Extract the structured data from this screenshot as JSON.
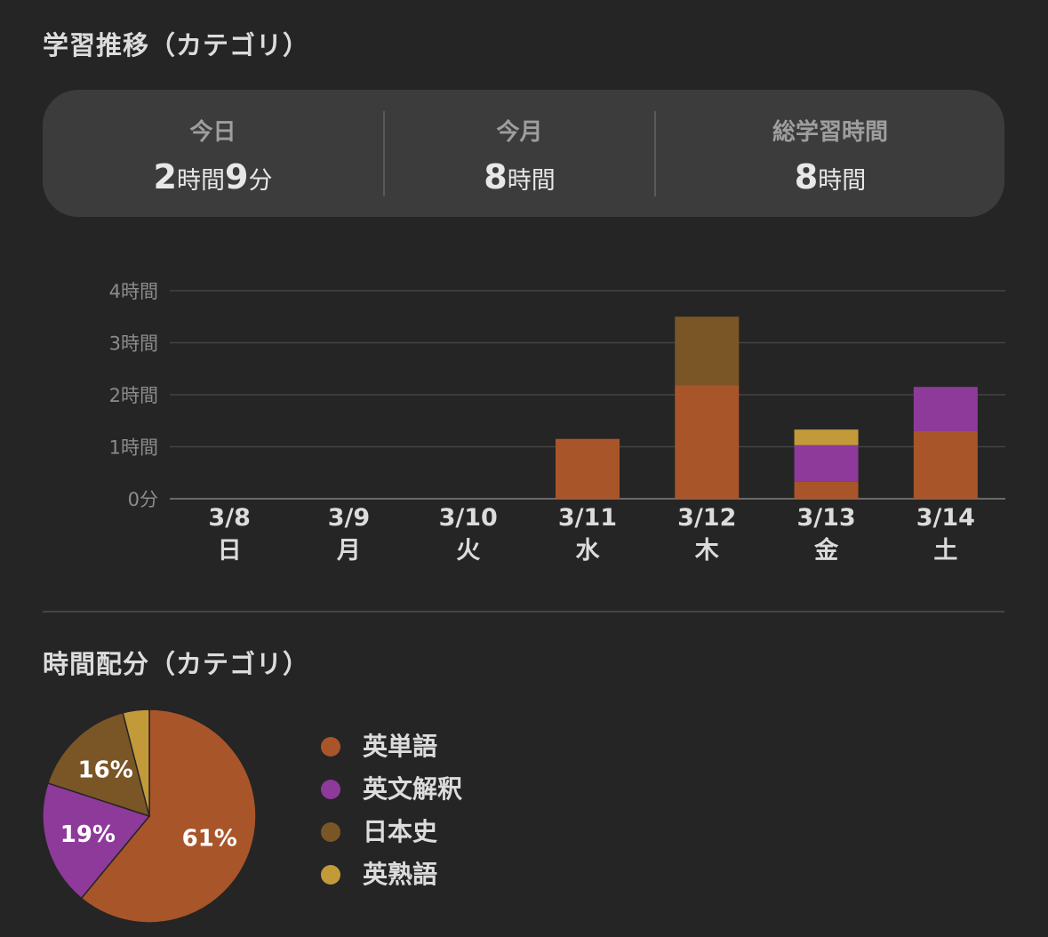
{
  "sections": {
    "trend_title": "学習推移（カテゴリ）",
    "distribution_title": "時間配分（カテゴリ）"
  },
  "summary": [
    {
      "label": "今日",
      "value_parts": [
        {
          "text": "2",
          "type": "num"
        },
        {
          "text": "時間",
          "type": "unit"
        },
        {
          "text": "9",
          "type": "num"
        },
        {
          "text": "分",
          "type": "unit"
        }
      ]
    },
    {
      "label": "今月",
      "value_parts": [
        {
          "text": "8",
          "type": "num"
        },
        {
          "text": "時間",
          "type": "unit"
        }
      ]
    },
    {
      "label": "総学習時間",
      "value_parts": [
        {
          "text": "8",
          "type": "num"
        },
        {
          "text": "時間",
          "type": "unit"
        }
      ]
    }
  ],
  "categories": [
    {
      "name": "英単語",
      "color": "#a9552a"
    },
    {
      "name": "英文解釈",
      "color": "#8e3a9a"
    },
    {
      "name": "日本史",
      "color": "#7a5627"
    },
    {
      "name": "英熟語",
      "color": "#c39a3a"
    }
  ],
  "chart_data": [
    {
      "type": "bar",
      "stacked": true,
      "categories": [
        "3/8",
        "3/9",
        "3/10",
        "3/11",
        "3/12",
        "3/13",
        "3/14"
      ],
      "weekdays": [
        "日",
        "月",
        "火",
        "水",
        "木",
        "金",
        "土"
      ],
      "ylim": [
        0,
        4
      ],
      "ytick_labels": [
        "0分",
        "1時間",
        "2時間",
        "3時間",
        "4時間"
      ],
      "grid": true,
      "series": [
        {
          "name": "英単語",
          "values": [
            0,
            0,
            0,
            1.15,
            2.18,
            0.33,
            1.3
          ]
        },
        {
          "name": "英文解釈",
          "values": [
            0,
            0,
            0,
            0,
            0,
            0.7,
            0.85
          ]
        },
        {
          "name": "日本史",
          "values": [
            0,
            0,
            0,
            0,
            1.32,
            0,
            0
          ]
        },
        {
          "name": "英熟語",
          "values": [
            0,
            0,
            0,
            0,
            0,
            0.3,
            0
          ]
        }
      ]
    },
    {
      "type": "pie",
      "labels": [
        "英単語",
        "英文解釈",
        "日本史",
        "英熟語"
      ],
      "values": [
        61,
        19,
        16,
        4
      ],
      "value_labels": [
        "61%",
        "19%",
        "16%",
        ""
      ]
    }
  ]
}
